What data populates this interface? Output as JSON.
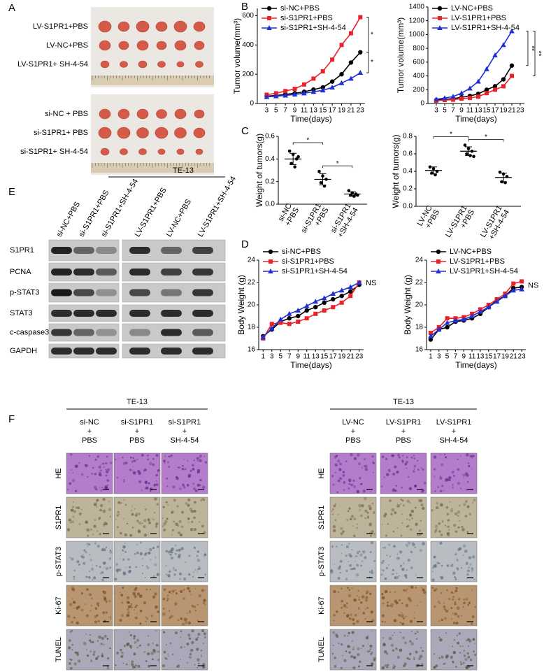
{
  "panel_labels": [
    "A",
    "B",
    "C",
    "D",
    "E",
    "F"
  ],
  "panel_a": {
    "top_labels": [
      "LV-S1PR1+PBS",
      "LV-NC+PBS",
      "LV-S1PR1+ SH-4-54"
    ],
    "bottom_labels": [
      "si-NC + PBS",
      "si-S1PR1+ PBS",
      "si-S1PR1+ SH-4-54"
    ]
  },
  "chart_data": [
    {
      "type": "line",
      "ylabel": "Tumor volume(mm³)",
      "xlabel": "Time(days)",
      "x": [
        3,
        5,
        7,
        9,
        11,
        13,
        15,
        17,
        19,
        21,
        23
      ],
      "xlim": [
        1,
        24
      ],
      "xticks": [
        3,
        5,
        7,
        9,
        11,
        13,
        15,
        17,
        19,
        21,
        23
      ],
      "ylim": [
        0,
        650
      ],
      "yticks": [
        0,
        200,
        400,
        600
      ],
      "legend": "upper left",
      "series": [
        {
          "name": "si-NC+PBS",
          "color": "#000000",
          "marker": "circle",
          "values": [
            50,
            55,
            62,
            70,
            80,
            95,
            110,
            150,
            200,
            280,
            350
          ]
        },
        {
          "name": "si-S1PR1+PBS",
          "color": "#e8232a",
          "marker": "square",
          "values": [
            60,
            70,
            85,
            100,
            130,
            170,
            220,
            300,
            400,
            480,
            590
          ]
        },
        {
          "name": "si-S1PR1+SH-4-54",
          "color": "#1f2fd6",
          "marker": "triangle",
          "values": [
            45,
            50,
            55,
            62,
            70,
            80,
            90,
            110,
            140,
            170,
            210
          ]
        }
      ],
      "annotations": [
        "*",
        "*"
      ]
    },
    {
      "type": "line",
      "ylabel": "Tumor volume(mm³)",
      "xlabel": "Time(days)",
      "x": [
        3,
        5,
        7,
        9,
        11,
        13,
        15,
        17,
        19,
        21
      ],
      "xlim": [
        1,
        24
      ],
      "xticks": [
        3,
        5,
        7,
        9,
        11,
        13,
        15,
        17,
        19,
        21,
        23
      ],
      "ylim": [
        0,
        1400
      ],
      "yticks": [
        0,
        200,
        400,
        600,
        800,
        1000,
        1200,
        1400
      ],
      "legend": "upper left",
      "series": [
        {
          "name": "LV-NC+PBS",
          "color": "#000000",
          "marker": "circle",
          "values": [
            50,
            60,
            70,
            90,
            110,
            140,
            200,
            250,
            350,
            550
          ]
        },
        {
          "name": "LV-S1PR1+PBS",
          "color": "#e8232a",
          "marker": "square",
          "values": [
            40,
            50,
            55,
            70,
            80,
            100,
            150,
            200,
            250,
            400
          ]
        },
        {
          "name": "LV-S1PR1+SH-4-54",
          "color": "#1f2fd6",
          "marker": "triangle",
          "values": [
            60,
            80,
            100,
            150,
            220,
            320,
            500,
            700,
            850,
            1050
          ]
        }
      ],
      "annotations": [
        "**",
        "**"
      ]
    },
    {
      "type": "dot",
      "ylabel": "Weight of tumors(g)",
      "categories": [
        [
          "si-NC",
          "+PBS"
        ],
        [
          "si-S1PR1",
          "+PBS"
        ],
        [
          "si-S1PR1",
          "+SH-4-54"
        ]
      ],
      "ylim": [
        0,
        0.6
      ],
      "yticks": [
        {
          "value": 0,
          "label": "0.0"
        },
        0.2,
        0.4,
        0.6
      ],
      "values": [
        [
          0.47,
          0.44,
          0.4,
          0.36,
          0.33,
          0.42
        ],
        [
          0.29,
          0.25,
          0.22,
          0.19,
          0.16
        ],
        [
          0.12,
          0.1,
          0.09,
          0.08,
          0.07,
          0.08
        ]
      ],
      "means": [
        0.4,
        0.22,
        0.09
      ],
      "sd": [
        0.05,
        0.05,
        0.02
      ],
      "annotations": [
        "*",
        "*"
      ]
    },
    {
      "type": "dot",
      "ylabel": "Weight of tumors(g)",
      "categories": [
        [
          "LV-NC",
          "+PBS"
        ],
        [
          "LV-S1PR1",
          "+PBS"
        ],
        [
          "LV-S1PR1",
          "+SH-4-54"
        ]
      ],
      "ylim": [
        0,
        0.8
      ],
      "yticks": [
        {
          "value": 0,
          "label": "0.0"
        },
        0.2,
        0.4,
        0.6,
        0.8
      ],
      "values": [
        [
          0.45,
          0.43,
          0.4,
          0.38,
          0.36
        ],
        [
          0.7,
          0.66,
          0.63,
          0.6,
          0.58,
          0.57
        ],
        [
          0.39,
          0.37,
          0.34,
          0.28,
          0.27
        ]
      ],
      "means": [
        0.41,
        0.63,
        0.33
      ],
      "sd": [
        0.04,
        0.05,
        0.05
      ],
      "annotations": [
        "*",
        "*"
      ]
    },
    {
      "type": "line",
      "ylabel": "Body Weight (g)",
      "xlabel": "Time(days)",
      "x": [
        1,
        3,
        5,
        7,
        9,
        11,
        13,
        15,
        17,
        19,
        21,
        23
      ],
      "xlim": [
        0,
        24
      ],
      "xticks": [
        1,
        3,
        5,
        7,
        9,
        11,
        13,
        15,
        17,
        19,
        21,
        23
      ],
      "ylim": [
        16,
        24
      ],
      "yticks": [
        16,
        18,
        20,
        22,
        24
      ],
      "legend": "upper left",
      "series": [
        {
          "name": "si-NC+PBS",
          "color": "#000000",
          "marker": "circle",
          "values": [
            17.2,
            17.8,
            18.5,
            18.8,
            19.0,
            19.5,
            19.8,
            20.2,
            20.5,
            20.8,
            21.2,
            21.8
          ]
        },
        {
          "name": "si-S1PR1+PBS",
          "color": "#e8232a",
          "marker": "square",
          "values": [
            17.0,
            18.3,
            18.4,
            18.3,
            18.5,
            18.8,
            19.2,
            19.5,
            19.8,
            20.2,
            20.8,
            22.0
          ]
        },
        {
          "name": "si-S1PR1+SH-4-54",
          "color": "#1f2fd6",
          "marker": "triangle",
          "values": [
            17.1,
            17.9,
            18.7,
            19.2,
            19.5,
            19.9,
            20.3,
            20.6,
            21.0,
            21.3,
            21.6,
            22.0
          ]
        }
      ],
      "annotations": [
        "NS"
      ]
    },
    {
      "type": "line",
      "ylabel": "Body Weight (g)",
      "xlabel": "Time(days)",
      "x": [
        1,
        3,
        5,
        7,
        9,
        11,
        13,
        15,
        17,
        19,
        21,
        23
      ],
      "xlim": [
        0,
        24
      ],
      "xticks": [
        1,
        3,
        5,
        7,
        9,
        11,
        13,
        15,
        17,
        19,
        21,
        23
      ],
      "ylim": [
        16,
        24
      ],
      "yticks": [
        16,
        18,
        20,
        22,
        24
      ],
      "legend": "upper left",
      "series": [
        {
          "name": "LV-NC+PBS",
          "color": "#000000",
          "marker": "circle",
          "values": [
            16.9,
            17.8,
            18.0,
            18.5,
            18.6,
            18.8,
            19.2,
            19.8,
            20.4,
            20.8,
            21.5,
            21.6
          ]
        },
        {
          "name": "LV-S1PR1+PBS",
          "color": "#e8232a",
          "marker": "square",
          "values": [
            17.5,
            18.0,
            18.8,
            18.8,
            18.9,
            19.2,
            19.6,
            20.0,
            20.5,
            21.0,
            21.9,
            22.1
          ]
        },
        {
          "name": "LV-S1PR1+SH-4-54",
          "color": "#1f2fd6",
          "marker": "triangle",
          "values": [
            17.2,
            17.8,
            18.4,
            18.6,
            18.7,
            19.0,
            19.4,
            19.8,
            20.3,
            20.8,
            21.3,
            21.4
          ]
        }
      ],
      "annotations": [
        "NS"
      ]
    }
  ],
  "panel_e": {
    "cell_line": "TE-13",
    "columns": [
      "si-NC+PBS",
      "si-S1PR1+PBS",
      "si-S1PR1+SH-4-54",
      "LV-S1PR1+PBS",
      "LV-NC+PBS",
      "LV-S1PR1+SH-4-54"
    ],
    "rows": [
      "S1PR1",
      "PCNA",
      "p-STAT3",
      "STAT3",
      "c-caspase3",
      "GAPDH"
    ]
  },
  "panel_f": [
    {
      "cell_line": "TE-13",
      "columns": [
        [
          "si-NC",
          "+",
          "PBS"
        ],
        [
          "si-S1PR1",
          "+",
          "PBS"
        ],
        [
          "si-S1PR1",
          "+",
          "SH-4-54"
        ]
      ],
      "rows": [
        "HE",
        "S1PR1",
        "p-STAT3",
        "Ki-67",
        "TUNEL"
      ]
    },
    {
      "cell_line": "TE-13",
      "columns": [
        [
          "LV-NC",
          "+",
          "PBS"
        ],
        [
          "LV-S1PR1",
          "+",
          "PBS"
        ],
        [
          "LV-S1PR1",
          "+",
          "SH-4-54"
        ]
      ],
      "rows": [
        "HE",
        "S1PR1",
        "p-STAT3",
        "Ki-67",
        "TUNEL"
      ]
    }
  ]
}
